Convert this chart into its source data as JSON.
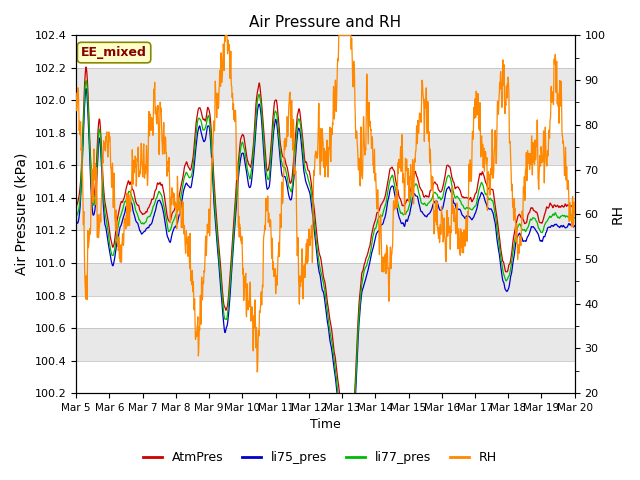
{
  "title": "Air Pressure and RH",
  "ylabel_left": "Air Pressure (kPa)",
  "ylabel_right": "RH",
  "xlabel": "Time",
  "ylim_left": [
    100.2,
    102.4
  ],
  "ylim_right": [
    20,
    100
  ],
  "annotation_text": "EE_mixed",
  "colors": {
    "AtmPres": "#cc0000",
    "li75_pres": "#0000cc",
    "li77_pres": "#00bb00",
    "RH": "#ff8800"
  },
  "legend_labels": [
    "AtmPres",
    "li75_pres",
    "li77_pres",
    "RH"
  ],
  "x_tick_labels": [
    "Mar 5",
    "Mar 6",
    "Mar 7",
    "Mar 8",
    "Mar 9",
    "Mar 10",
    "Mar 11",
    "Mar 12",
    "Mar 13",
    "Mar 14",
    "Mar 15",
    "Mar 16",
    "Mar 17",
    "Mar 18",
    "Mar 19",
    "Mar 20"
  ],
  "background_color": "#ffffff",
  "band_colors": [
    "#ffffff",
    "#e8e8e8"
  ],
  "yticks_left": [
    100.2,
    100.4,
    100.6,
    100.8,
    101.0,
    101.2,
    101.4,
    101.6,
    101.8,
    102.0,
    102.2,
    102.4
  ],
  "yticks_right": [
    20,
    30,
    40,
    50,
    60,
    70,
    80,
    90,
    100
  ],
  "yticks_right_minor": [
    25,
    35,
    45,
    55,
    65,
    75,
    85,
    95
  ]
}
